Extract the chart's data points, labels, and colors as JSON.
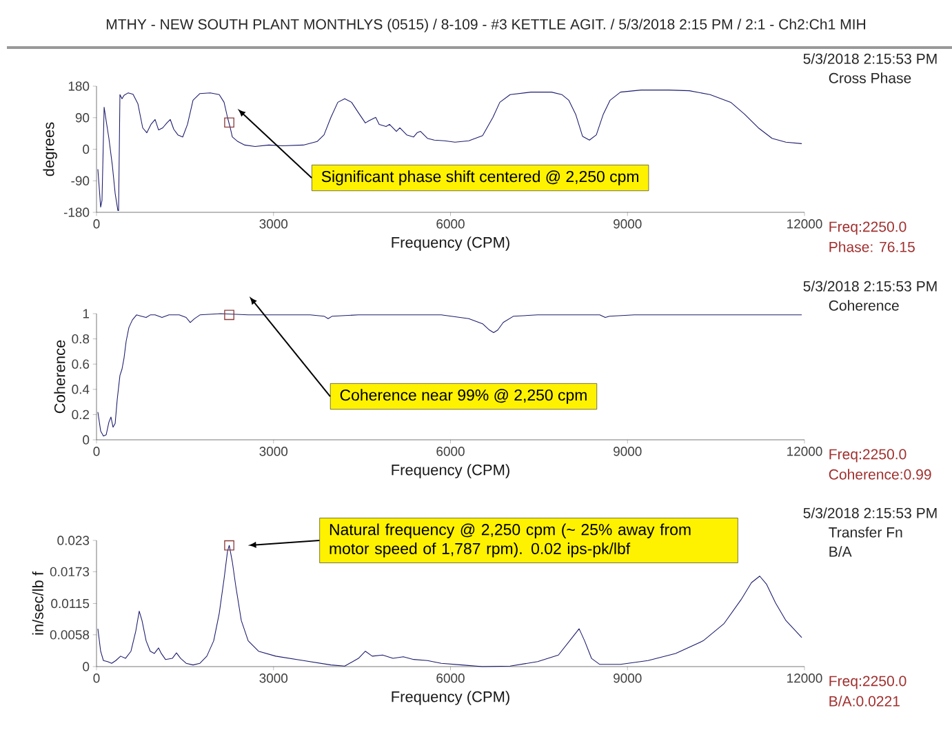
{
  "chart_data": [
    {
      "type": "line",
      "title": "MTHY - NEW SOUTH PLANT MONTHLYS (0515) / 8-109 - #3 KETTLE AGIT. / 5/3/2018 2:15 PM / 2:1 - Ch2:Ch1 MIH",
      "subtitle": "5/3/2018 2:15:53 PM",
      "xlabel": "Frequency (CPM)",
      "ylabel": "degrees",
      "xlim": [
        0,
        12000
      ],
      "ylim": [
        -180,
        180
      ],
      "xticks": [
        0,
        3000,
        6000,
        9000,
        12000
      ],
      "yticks": [
        180,
        90,
        0,
        -90,
        -180
      ],
      "series": [
        {
          "type": "line",
          "color": "#1a1a6e",
          "x": [
            23,
            70,
            93,
            129,
            164,
            210,
            269,
            316,
            362,
            374,
            397,
            432,
            467,
            538,
            619,
            701,
            783,
            853,
            923,
            993,
            1052,
            1122,
            1192,
            1250,
            1309,
            1379,
            1461,
            1542,
            1636,
            1753,
            1928,
            2080,
            2162,
            2220,
            2267,
            2302,
            2395,
            2512,
            2688,
            2921,
            3155,
            3506,
            3739,
            3856,
            3973,
            4090,
            4207,
            4323,
            4440,
            4557,
            4616,
            4732,
            4791,
            4908,
            4966,
            5083,
            5141,
            5258,
            5375,
            5434,
            5492,
            5609,
            5726,
            5901,
            6076,
            6310,
            6544,
            6719,
            6836,
            7011,
            7362,
            7712,
            7887,
            8004,
            8121,
            8238,
            8355,
            8472,
            8590,
            8706,
            8881,
            9231,
            9699,
            10049,
            10400,
            10750,
            10984,
            11218,
            11451,
            11685,
            11954
          ],
          "values": [
            -57,
            -165,
            -146,
            120,
            81,
            31,
            -47,
            -126,
            -175,
            -175,
            156,
            144,
            154,
            161,
            157,
            130,
            61,
            47,
            71,
            85,
            55,
            61,
            75,
            85,
            57,
            41,
            35,
            71,
            140,
            159,
            161,
            156,
            134,
            91,
            61,
            35,
            22,
            12,
            8,
            12,
            10,
            12,
            22,
            41,
            91,
            134,
            144,
            134,
            104,
            75,
            81,
            91,
            71,
            65,
            71,
            51,
            61,
            41,
            35,
            47,
            51,
            31,
            26,
            24,
            20,
            24,
            39,
            91,
            134,
            156,
            163,
            163,
            156,
            140,
            100,
            37,
            26,
            41,
            100,
            140,
            163,
            169,
            169,
            167,
            156,
            134,
            100,
            61,
            31,
            20,
            16
          ]
        },
        {
          "type": "scatter",
          "color": "#8b3a3a",
          "marker": "square",
          "x": [
            2250
          ],
          "values": [
            76.15
          ]
        }
      ],
      "annotations": [
        "Cross Phase",
        "Significant phase shift centered @ 2,250 cpm",
        "Freq:2250.0",
        "Phase: 76.15"
      ]
    },
    {
      "type": "line",
      "subtitle": "5/3/2018 2:15:53 PM",
      "xlabel": "Frequency (CPM)",
      "ylabel": "Coherence",
      "xlim": [
        0,
        12000
      ],
      "ylim": [
        0,
        1
      ],
      "xticks": [
        0,
        3000,
        6000,
        9000,
        12000
      ],
      "yticks": [
        1,
        0.8,
        0.6,
        0.4,
        0.2,
        0
      ],
      "series": [
        {
          "type": "line",
          "color": "#1a1a6e",
          "x": [
            23,
            70,
            117,
            164,
            210,
            245,
            280,
            316,
            351,
            397,
            432,
            467,
            502,
            549,
            608,
            678,
            760,
            841,
            911,
            993,
            1110,
            1227,
            1402,
            1519,
            1589,
            1659,
            1753,
            2103,
            2571,
            3038,
            3622,
            3856,
            3926,
            3996,
            4440,
            5141,
            5843,
            6310,
            6544,
            6660,
            6731,
            6801,
            6894,
            7069,
            7478,
            8180,
            8530,
            8623,
            8694,
            9114,
            10049,
            10750,
            11451,
            11954
          ],
          "values": [
            0.22,
            0.07,
            0.03,
            0.04,
            0.14,
            0.18,
            0.1,
            0.13,
            0.32,
            0.51,
            0.56,
            0.65,
            0.78,
            0.89,
            0.95,
            0.99,
            0.98,
            0.97,
            0.99,
            0.99,
            0.97,
            0.99,
            0.99,
            0.97,
            0.93,
            0.96,
            0.99,
            1,
            0.99,
            0.99,
            0.99,
            0.98,
            0.96,
            0.98,
            0.99,
            0.99,
            0.99,
            0.96,
            0.92,
            0.87,
            0.85,
            0.87,
            0.93,
            0.98,
            0.99,
            0.99,
            0.99,
            0.97,
            0.98,
            0.99,
            0.99,
            0.99,
            0.99,
            0.99
          ]
        },
        {
          "type": "scatter",
          "color": "#8b3a3a",
          "marker": "square",
          "x": [
            2250
          ],
          "values": [
            0.99
          ]
        }
      ],
      "annotations": [
        "Coherence",
        "Coherence near 99% @ 2,250 cpm",
        "Freq:2250.0",
        "Coherence:0.99"
      ]
    },
    {
      "type": "line",
      "subtitle": "5/3/2018 2:15:53 PM",
      "xlabel": "Frequency (CPM)",
      "ylabel": "in/sec/lb f",
      "xlim": [
        0,
        12000
      ],
      "ylim": [
        0,
        0.023
      ],
      "xticks": [
        0,
        3000,
        6000,
        9000,
        12000
      ],
      "yticks": [
        0.023,
        0.0173,
        0.0115,
        0.0058,
        0
      ],
      "series": [
        {
          "type": "line",
          "color": "#1a1a6e",
          "x": [
            23,
            70,
            117,
            187,
            257,
            327,
            409,
            491,
            584,
            666,
            724,
            771,
            841,
            911,
            981,
            1052,
            1098,
            1169,
            1285,
            1355,
            1426,
            1519,
            1636,
            1753,
            1870,
            1986,
            2080,
            2162,
            2220,
            2250,
            2302,
            2360,
            2454,
            2571,
            2746,
            3038,
            3506,
            3973,
            4207,
            4440,
            4557,
            4674,
            4849,
            5025,
            5200,
            5375,
            5609,
            5843,
            6193,
            6544,
            7011,
            7478,
            7829,
            8063,
            8180,
            8273,
            8390,
            8530,
            8881,
            9348,
            9815,
            10283,
            10633,
            10925,
            11101,
            11241,
            11358,
            11510,
            11685,
            11954
          ],
          "values": [
            0.0069,
            0.0028,
            0.0011,
            0.0009,
            0.0006,
            0.0011,
            0.0019,
            0.0015,
            0.0028,
            0.0065,
            0.0101,
            0.0084,
            0.0047,
            0.0028,
            0.0024,
            0.0034,
            0.0024,
            0.0013,
            0.0015,
            0.0025,
            0.0015,
            0.0006,
            0.0003,
            0.0006,
            0.0019,
            0.0047,
            0.0097,
            0.016,
            0.021,
            0.0221,
            0.0191,
            0.0147,
            0.0084,
            0.0047,
            0.0028,
            0.0019,
            0.0011,
            0.0003,
            0.0001,
            0.0015,
            0.0028,
            0.0019,
            0.0021,
            0.0015,
            0.0018,
            0.0013,
            0.0011,
            0.0006,
            0.0003,
            0,
            0.0001,
            0.0009,
            0.0021,
            0.0053,
            0.0069,
            0.0047,
            0.0015,
            0.0004,
            0.0004,
            0.0011,
            0.0024,
            0.0047,
            0.0078,
            0.0122,
            0.0153,
            0.0165,
            0.015,
            0.0116,
            0.0084,
            0.0053
          ]
        },
        {
          "type": "scatter",
          "color": "#8b3a3a",
          "marker": "square",
          "x": [
            2250
          ],
          "values": [
            0.0221
          ]
        }
      ],
      "annotations": [
        "Transfer Fn",
        "B/A",
        "Natural frequency @ 2,250 cpm (~ 25% away from motor speed of 1,787 rpm).  0.02 ips-pk/lbf",
        "Freq:2250.0",
        "B/A:0.0221"
      ]
    }
  ]
}
